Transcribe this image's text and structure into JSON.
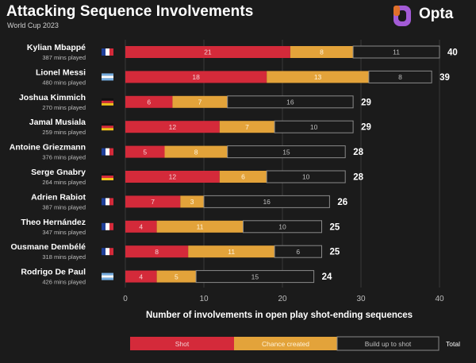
{
  "header": {
    "title": "Attacking Sequence Involvements",
    "subtitle": "World Cup 2023",
    "brand": "Opta"
  },
  "colors": {
    "shot": "#d42a3a",
    "chance_created": "#e3a33a",
    "build_up": "#1b1b1b",
    "background": "#1b1b1b",
    "outline": "#8a8a8a"
  },
  "chart_data": {
    "type": "bar",
    "orientation": "horizontal",
    "stacked": true,
    "title": "Attacking Sequence Involvements",
    "subtitle": "World Cup 2023",
    "xlabel": "Number of involvements in open play shot-ending sequences",
    "ylabel": "",
    "xlim": [
      0,
      40
    ],
    "xticks": [
      "0",
      "10",
      "20",
      "30",
      "40"
    ],
    "grid": true,
    "legend_position": "bottom",
    "legend_total_label": "Total",
    "categories": [
      "Kylian Mbappé",
      "Lionel Messi",
      "Joshua Kimmich",
      "Jamal Musiala",
      "Antoine Griezmann",
      "Serge Gnabry",
      "Adrien Rabiot",
      "Theo Hernández",
      "Ousmane Dembélé",
      "Rodrigo De Paul"
    ],
    "minutes": [
      "387 mins played",
      "480 mins played",
      "270 mins played",
      "259 mins played",
      "376 mins played",
      "264 mins played",
      "387 mins played",
      "347 mins played",
      "318 mins played",
      "426 mins played"
    ],
    "flags": [
      "france",
      "argentina",
      "germany",
      "germany",
      "france",
      "germany",
      "france",
      "france",
      "france",
      "argentina"
    ],
    "series": [
      {
        "name": "Shot",
        "values": [
          21,
          18,
          6,
          12,
          5,
          12,
          7,
          4,
          8,
          4
        ]
      },
      {
        "name": "Chance created",
        "values": [
          8,
          13,
          7,
          7,
          8,
          6,
          3,
          11,
          11,
          5
        ]
      },
      {
        "name": "Build up to shot",
        "values": [
          11,
          8,
          16,
          10,
          15,
          10,
          16,
          10,
          6,
          15
        ]
      }
    ],
    "totals": [
      40,
      39,
      29,
      29,
      28,
      28,
      26,
      25,
      25,
      24
    ]
  }
}
